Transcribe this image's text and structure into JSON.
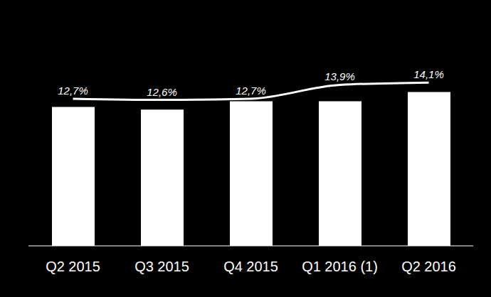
{
  "chart_data": {
    "type": "bar",
    "categories": [
      "Q2 2015",
      "Q3 2015",
      "Q4 2015",
      "Q1 2016 (1)",
      "Q2 2016"
    ],
    "ylim": [
      0,
      250
    ],
    "y2lim": [
      0,
      20
    ],
    "tick_labels": "x",
    "series": [
      {
        "type": "bar",
        "color": "#ffffff",
        "values": [
          150,
          147,
          156,
          156,
          166
        ]
      },
      {
        "type": "line",
        "axis": "y2",
        "color": "#ffffff",
        "values": [
          12.7,
          12.6,
          12.7,
          13.9,
          14.1
        ],
        "value_labels": [
          "12,7%",
          "12,6%",
          "12,7%",
          "13,9%",
          "14,1%"
        ],
        "data_labels": true
      }
    ]
  }
}
